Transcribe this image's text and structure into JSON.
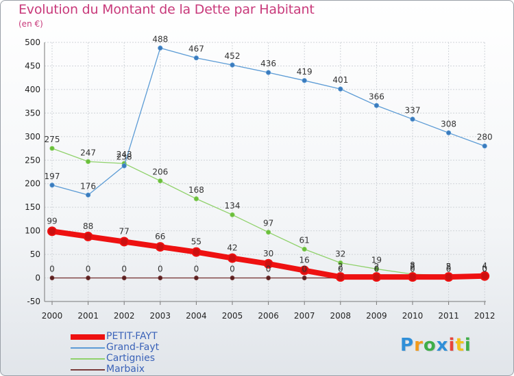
{
  "title": "Evolution du Montant de la Dette par Habitant",
  "unit": "(en €)",
  "logo_text": "Proxiti",
  "colors": {
    "title": "#c8397a",
    "grid": "#cfd3d8",
    "axis": "#666666"
  },
  "chart_data": {
    "type": "line",
    "title": "Evolution du Montant de la Dette par Habitant",
    "subtitle": "(en €)",
    "xlabel": "",
    "ylabel": "",
    "x": [
      "2000",
      "2001",
      "2002",
      "2003",
      "2004",
      "2005",
      "2006",
      "2007",
      "2008",
      "2009",
      "2010",
      "2011",
      "2012"
    ],
    "ylim": [
      -50,
      500
    ],
    "yticks": [
      "-50",
      "0",
      "50",
      "100",
      "150",
      "200",
      "250",
      "300",
      "350",
      "400",
      "450",
      "500"
    ],
    "grid": true,
    "legend": "bottom-left",
    "series": [
      {
        "name": "PETIT-FAYT",
        "color": "#ee1111",
        "values": [
          99,
          88,
          77,
          66,
          55,
          42,
          30,
          16,
          2,
          2,
          2,
          2,
          4
        ],
        "labels": [
          "99",
          "88",
          "77",
          "66",
          "55",
          "42",
          "30",
          "16",
          "2",
          "2",
          "2",
          "2",
          "4"
        ]
      },
      {
        "name": "Grand-Fayt",
        "color": "#5b9bd5",
        "values": [
          197,
          176,
          238,
          488,
          467,
          452,
          436,
          419,
          401,
          366,
          337,
          308,
          280
        ],
        "labels": [
          "197",
          "176",
          "238",
          "488",
          "467",
          "452",
          "436",
          "419",
          "401",
          "366",
          "337",
          "308",
          "280"
        ]
      },
      {
        "name": "Cartignies",
        "color": "#8fd16a",
        "values": [
          275,
          247,
          243,
          206,
          168,
          134,
          97,
          61,
          32,
          19,
          8,
          5,
          0
        ],
        "labels": [
          "275",
          "247",
          "243",
          "206",
          "168",
          "134",
          "97",
          "61",
          "32",
          "19",
          "8",
          "5",
          "0"
        ]
      },
      {
        "name": "Marbaix",
        "color": "#7a3a3a",
        "values": [
          0,
          0,
          0,
          0,
          0,
          0,
          0,
          0,
          0,
          0,
          0,
          0,
          0
        ],
        "labels": [
          "0",
          "0",
          "0",
          "0",
          "0",
          "0",
          "0",
          "0",
          "0",
          "0",
          "0",
          "0",
          "0"
        ]
      }
    ]
  }
}
